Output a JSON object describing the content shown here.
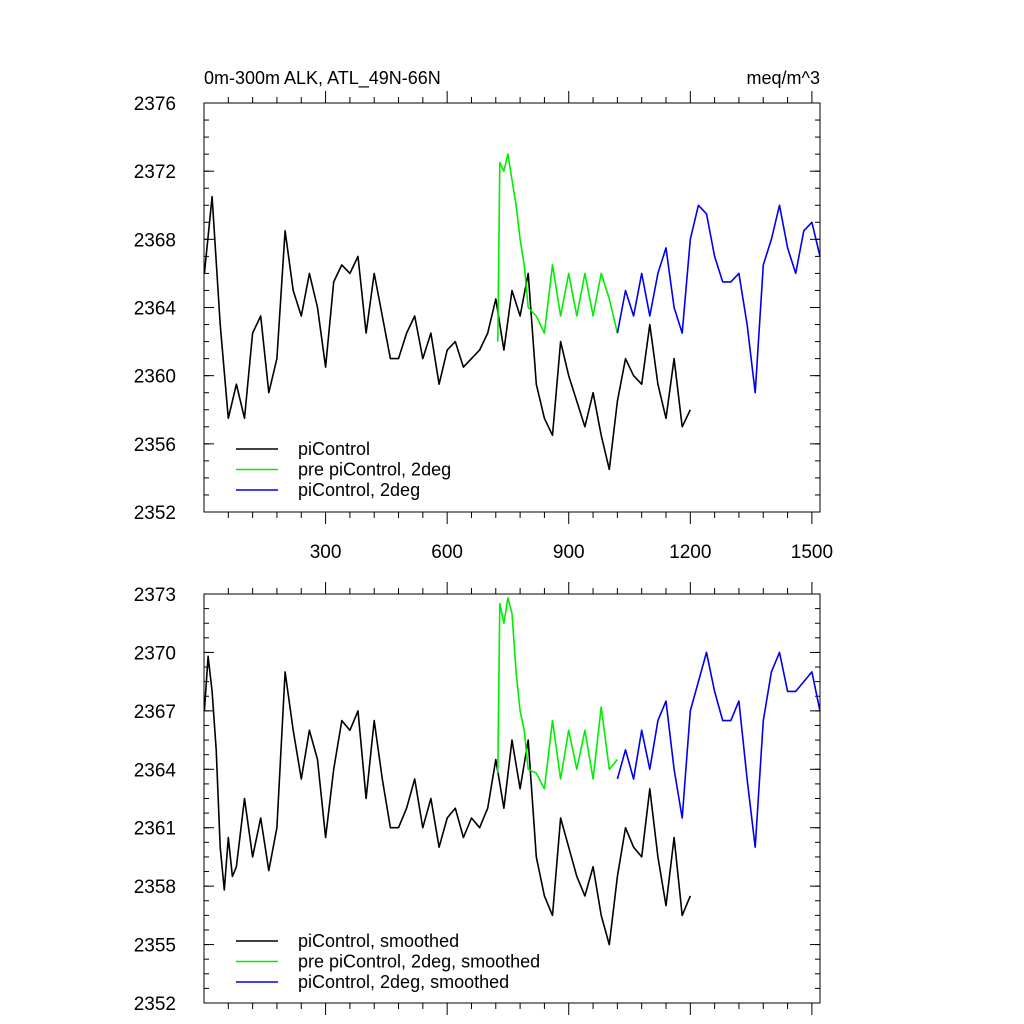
{
  "chart_data": [
    {
      "type": "line",
      "title_left": "0m-300m ALK, ATL_49N-66N",
      "title_right": "meq/m^3",
      "xlabel": "",
      "ylabel": "",
      "xlim": [
        0,
        1520
      ],
      "ylim": [
        2352,
        2376
      ],
      "yticks": [
        2352,
        2356,
        2360,
        2364,
        2368,
        2372,
        2376
      ],
      "xticks": [
        300,
        600,
        900,
        1200,
        1500
      ],
      "show_xtick_labels": true,
      "legend_position": "bottom-left",
      "series": [
        {
          "name": "piControl",
          "color": "#000000",
          "x": [
            1,
            20,
            40,
            60,
            80,
            100,
            120,
            140,
            160,
            180,
            200,
            220,
            240,
            260,
            280,
            300,
            320,
            340,
            360,
            380,
            400,
            420,
            440,
            460,
            480,
            500,
            520,
            540,
            560,
            580,
            600,
            620,
            640,
            660,
            680,
            700,
            720,
            740,
            760,
            780,
            800,
            820,
            840,
            860,
            880,
            900,
            920,
            940,
            960,
            980,
            1000,
            1020,
            1040,
            1060,
            1080,
            1100,
            1120,
            1140,
            1160,
            1180,
            1200
          ],
          "values": [
            2366,
            2370.5,
            2363,
            2357.5,
            2359.5,
            2357.5,
            2362.5,
            2363.5,
            2359,
            2361,
            2368.5,
            2365,
            2363.5,
            2366,
            2364,
            2360.5,
            2365.5,
            2366.5,
            2366,
            2367,
            2362.5,
            2366,
            2363.5,
            2361,
            2361,
            2362.5,
            2363.5,
            2361,
            2362.5,
            2359.5,
            2361.5,
            2362,
            2360.5,
            2361,
            2361.5,
            2362.5,
            2364.5,
            2361.5,
            2365,
            2363.5,
            2366,
            2359.5,
            2357.5,
            2356.5,
            2362,
            2360,
            2358.5,
            2357,
            2359,
            2356.5,
            2354.5,
            2358.5,
            2361,
            2360,
            2359.5,
            2363,
            2359.5,
            2357.5,
            2361,
            2357,
            2358
          ]
        },
        {
          "name": "pre piControl, 2deg",
          "color": "#00ee00",
          "x": [
            725,
            730,
            740,
            750,
            760,
            770,
            780,
            790,
            800,
            820,
            840,
            860,
            880,
            900,
            920,
            940,
            960,
            980,
            1000,
            1020
          ],
          "values": [
            2362,
            2372.5,
            2372,
            2373,
            2371.5,
            2370,
            2368,
            2366.5,
            2364,
            2363.5,
            2362.5,
            2366.5,
            2363.5,
            2366,
            2363.5,
            2366,
            2363.5,
            2366,
            2364.5,
            2362.5
          ]
        },
        {
          "name": "piControl, 2deg",
          "color": "#0000ee",
          "x": [
            1020,
            1040,
            1060,
            1080,
            1100,
            1120,
            1140,
            1160,
            1180,
            1200,
            1220,
            1240,
            1260,
            1280,
            1300,
            1320,
            1340,
            1360,
            1380,
            1400,
            1420,
            1440,
            1460,
            1480,
            1500,
            1520
          ],
          "values": [
            2362.5,
            2365,
            2363.5,
            2366,
            2363.5,
            2366,
            2367.5,
            2364,
            2362.5,
            2368,
            2370,
            2369.5,
            2367,
            2365.5,
            2365.5,
            2366,
            2363,
            2359,
            2366.5,
            2368,
            2370,
            2367.5,
            2366,
            2368.5,
            2369,
            2367
          ]
        }
      ]
    },
    {
      "type": "line",
      "title_left": "",
      "title_right": "",
      "xlabel": "",
      "ylabel": "",
      "xlim": [
        0,
        1520
      ],
      "ylim": [
        2352,
        2373
      ],
      "yticks": [
        2352,
        2355,
        2358,
        2361,
        2364,
        2367,
        2370,
        2373
      ],
      "xticks": [
        300,
        600,
        900,
        1200,
        1500
      ],
      "show_xtick_labels": false,
      "legend_position": "bottom-left",
      "series": [
        {
          "name": "piControl, smoothed",
          "color": "#000000",
          "x": [
            1,
            10,
            20,
            30,
            40,
            50,
            60,
            70,
            80,
            100,
            120,
            140,
            160,
            180,
            200,
            220,
            240,
            260,
            280,
            300,
            320,
            340,
            360,
            380,
            400,
            420,
            440,
            460,
            480,
            500,
            520,
            540,
            560,
            580,
            600,
            620,
            640,
            660,
            680,
            700,
            720,
            740,
            760,
            780,
            800,
            820,
            840,
            860,
            880,
            900,
            920,
            940,
            960,
            980,
            1000,
            1020,
            1040,
            1060,
            1080,
            1100,
            1120,
            1140,
            1160,
            1180,
            1200
          ],
          "values": [
            2367,
            2369.8,
            2368,
            2365,
            2360,
            2357.8,
            2360.5,
            2358.5,
            2359,
            2362.5,
            2359.5,
            2361.5,
            2358.8,
            2361,
            2369,
            2366,
            2363.5,
            2366,
            2364.5,
            2360.5,
            2364,
            2366.5,
            2366,
            2367,
            2362.5,
            2366.5,
            2363.5,
            2361,
            2361,
            2362,
            2363.5,
            2361,
            2362.5,
            2360,
            2361.5,
            2362,
            2360.5,
            2361.5,
            2361,
            2362,
            2364.5,
            2362,
            2365.5,
            2363,
            2365.5,
            2359.5,
            2357.5,
            2356.5,
            2361.5,
            2360,
            2358.5,
            2357.5,
            2359,
            2356.5,
            2355,
            2358.5,
            2361,
            2360,
            2359.5,
            2363,
            2359.5,
            2357,
            2360.5,
            2356.5,
            2357.5
          ]
        },
        {
          "name": "pre piControl, 2deg, smoothed",
          "color": "#00ee00",
          "x": [
            725,
            730,
            740,
            750,
            760,
            770,
            780,
            790,
            800,
            820,
            840,
            860,
            880,
            900,
            920,
            940,
            960,
            980,
            1000,
            1020
          ],
          "values": [
            2363.8,
            2372.5,
            2371.5,
            2372.8,
            2372,
            2369,
            2367,
            2366,
            2364,
            2363.8,
            2363,
            2366.5,
            2363.5,
            2366,
            2364,
            2366,
            2363.5,
            2367.2,
            2364,
            2364.5
          ]
        },
        {
          "name": "piControl, 2deg, smoothed",
          "color": "#0000ee",
          "x": [
            1020,
            1040,
            1060,
            1080,
            1100,
            1120,
            1140,
            1160,
            1180,
            1200,
            1220,
            1240,
            1260,
            1280,
            1300,
            1320,
            1340,
            1360,
            1380,
            1400,
            1420,
            1440,
            1460,
            1480,
            1500,
            1520
          ],
          "values": [
            2363.5,
            2365,
            2363.5,
            2366,
            2364,
            2366.5,
            2367.5,
            2364,
            2361.5,
            2367,
            2368.5,
            2370,
            2368,
            2366.5,
            2366.5,
            2367.5,
            2363.5,
            2360,
            2366.5,
            2369,
            2370,
            2368,
            2368,
            2368.5,
            2369,
            2367
          ]
        }
      ]
    }
  ]
}
